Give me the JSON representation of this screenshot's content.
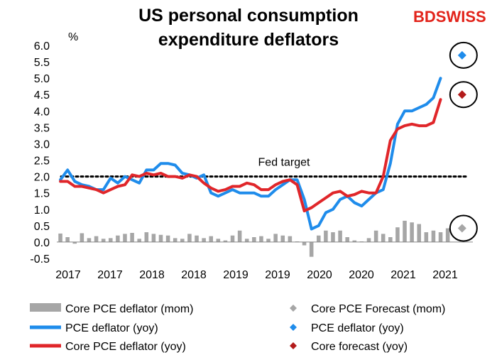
{
  "brand": {
    "name": "BDSWISS",
    "part1": "BD",
    "part2": "SWISS",
    "color": "#e2231a"
  },
  "chart_data": {
    "type": "line",
    "title_lines": [
      "US personal consumption",
      "expenditure deflators"
    ],
    "ylabel": "%",
    "ylim": [
      -0.5,
      6.0
    ],
    "yticks": [
      "6.0",
      "5.5",
      "5.0",
      "4.5",
      "4.0",
      "3.5",
      "3.0",
      "2.5",
      "2.0",
      "1.5",
      "1.0",
      "0.5",
      "0.0",
      "-0.5"
    ],
    "xtick_labels": [
      "2017",
      "2017",
      "2018",
      "2018",
      "2019",
      "2019",
      "2020",
      "2020",
      "2021",
      "2021"
    ],
    "n_periods": 58,
    "fed_target": {
      "value": 2.0,
      "label": "Fed target"
    },
    "series": [
      {
        "name": "Core PCE deflator (mom)",
        "kind": "bar",
        "color": "#a6a6a6",
        "values": [
          0.26,
          0.15,
          -0.05,
          0.27,
          0.12,
          0.18,
          0.1,
          0.12,
          0.2,
          0.25,
          0.28,
          0.1,
          0.3,
          0.25,
          0.22,
          0.2,
          0.12,
          0.1,
          0.25,
          0.2,
          0.12,
          0.18,
          0.1,
          0.05,
          0.2,
          0.35,
          0.1,
          0.15,
          0.18,
          0.1,
          0.25,
          0.2,
          0.18,
          0.02,
          -0.1,
          -0.45,
          0.2,
          0.35,
          0.3,
          0.35,
          0.15,
          0.05,
          0.02,
          0.12,
          0.35,
          0.25,
          0.15,
          0.45,
          0.65,
          0.6,
          0.55,
          0.3,
          0.35,
          0.3,
          0.42
        ]
      },
      {
        "name": "PCE deflator (yoy)",
        "kind": "line",
        "color": "#1f8ceb",
        "values": [
          1.9,
          2.2,
          1.85,
          1.75,
          1.7,
          1.6,
          1.6,
          1.95,
          1.8,
          2.0,
          1.9,
          1.8,
          2.2,
          2.2,
          2.4,
          2.4,
          2.35,
          2.1,
          2.05,
          1.95,
          2.05,
          1.5,
          1.4,
          1.5,
          1.6,
          1.5,
          1.5,
          1.5,
          1.4,
          1.4,
          1.6,
          1.75,
          1.9,
          1.9,
          1.3,
          0.4,
          0.5,
          0.9,
          1.0,
          1.3,
          1.4,
          1.2,
          1.1,
          1.3,
          1.5,
          1.6,
          2.4,
          3.6,
          4.0,
          4.0,
          4.1,
          4.2,
          4.4,
          5.0
        ]
      },
      {
        "name": "Core PCE deflator (yoy)",
        "kind": "line",
        "color": "#e0262a",
        "values": [
          1.85,
          1.85,
          1.7,
          1.7,
          1.65,
          1.6,
          1.5,
          1.6,
          1.7,
          1.75,
          2.05,
          2.0,
          2.1,
          2.05,
          2.1,
          2.0,
          2.0,
          1.95,
          2.05,
          2.0,
          1.8,
          1.65,
          1.55,
          1.6,
          1.7,
          1.7,
          1.8,
          1.75,
          1.6,
          1.6,
          1.75,
          1.85,
          1.9,
          1.75,
          0.95,
          1.05,
          1.2,
          1.35,
          1.5,
          1.55,
          1.4,
          1.45,
          1.55,
          1.5,
          1.5,
          2.0,
          3.1,
          3.45,
          3.55,
          3.6,
          3.55,
          3.55,
          3.65,
          4.35
        ]
      }
    ],
    "forecasts": [
      {
        "name": "Core PCE Forecast (mom)",
        "index": 56,
        "value": 0.42,
        "color": "#a6a6a6"
      },
      {
        "name": "PCE deflator (yoy)",
        "index": 56,
        "value": 5.7,
        "color": "#1f8ceb"
      },
      {
        "name": "Core forecast (yoy)",
        "index": 56,
        "value": 4.5,
        "color": "#b31b1b"
      }
    ],
    "legend": [
      {
        "label": "Core PCE deflator (mom)",
        "symbol": "bar",
        "color": "#a6a6a6"
      },
      {
        "label": "Core PCE Forecast (mom)",
        "symbol": "diamond",
        "color": "#a6a6a6"
      },
      {
        "label": "PCE deflator (yoy)",
        "symbol": "line",
        "color": "#1f8ceb"
      },
      {
        "label": "PCE deflator (yoy)",
        "symbol": "diamond",
        "color": "#1f8ceb"
      },
      {
        "label": "Core PCE deflator (yoy)",
        "symbol": "line",
        "color": "#e0262a"
      },
      {
        "label": "Core forecast (yoy)",
        "symbol": "diamond",
        "color": "#b31b1b"
      }
    ]
  }
}
